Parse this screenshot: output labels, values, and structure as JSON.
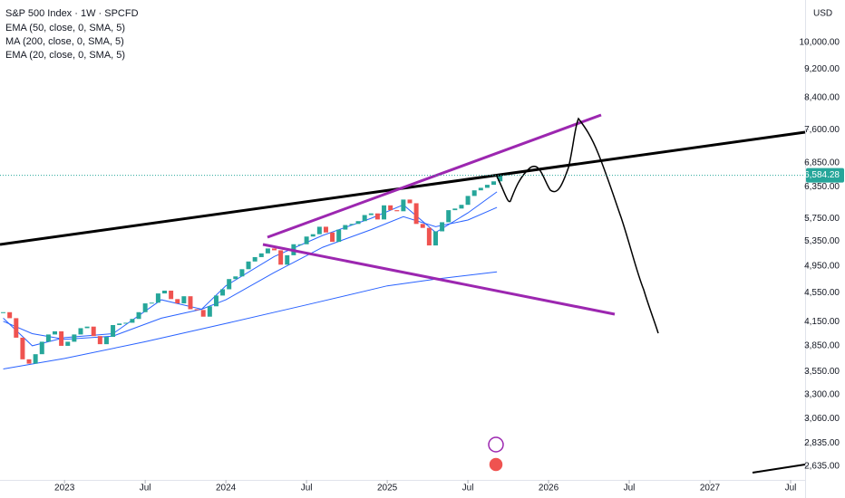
{
  "chart_data": {
    "type": "candlestick",
    "title": "S&P 500 Index · 1W · SPCFD",
    "indicators_legend": [
      "EMA (50, close, 0, SMA, 5)",
      "MA (200, close, 0, SMA, 5)",
      "EMA (20, close, 0, SMA, 5)"
    ],
    "currency": "USD",
    "log_scale": true,
    "grid": false,
    "up_color": "#26a69a",
    "down_color": "#ef5350",
    "x": [
      2022.62,
      2022.66,
      2022.7,
      2022.74,
      2022.78,
      2022.82,
      2022.86,
      2022.9,
      2022.94,
      2022.98,
      2023.02,
      2023.06,
      2023.1,
      2023.14,
      2023.18,
      2023.22,
      2023.26,
      2023.3,
      2023.34,
      2023.38,
      2023.42,
      2023.46,
      2023.5,
      2023.54,
      2023.58,
      2023.62,
      2023.66,
      2023.7,
      2023.74,
      2023.78,
      2023.82,
      2023.86,
      2023.9,
      2023.94,
      2023.98,
      2024.02,
      2024.06,
      2024.1,
      2024.14,
      2024.18,
      2024.22,
      2024.26,
      2024.3,
      2024.34,
      2024.38,
      2024.42,
      2024.46,
      2024.5,
      2024.54,
      2024.58,
      2024.62,
      2024.66,
      2024.7,
      2024.74,
      2024.78,
      2024.82,
      2024.86,
      2024.9,
      2024.94,
      2024.98,
      2025.02,
      2025.06,
      2025.1,
      2025.14,
      2025.18,
      2025.22,
      2025.26,
      2025.3,
      2025.34,
      2025.38,
      2025.42,
      2025.46,
      2025.5,
      2025.54,
      2025.58,
      2025.62,
      2025.66,
      2025.7
    ],
    "values": [
      4280,
      4200,
      3950,
      3690,
      3640,
      3750,
      3900,
      3990,
      4030,
      3850,
      3900,
      3990,
      4070,
      4090,
      3970,
      3870,
      3960,
      4110,
      4130,
      4140,
      4190,
      4280,
      4400,
      4410,
      4540,
      4580,
      4460,
      4400,
      4500,
      4320,
      4310,
      4220,
      4360,
      4510,
      4600,
      4750,
      4790,
      4900,
      5020,
      5090,
      5150,
      5230,
      5200,
      4970,
      5120,
      5300,
      5300,
      5430,
      5470,
      5600,
      5500,
      5340,
      5550,
      5630,
      5650,
      5700,
      5810,
      5840,
      5730,
      5990,
      5900,
      5880,
      6100,
      6030,
      5650,
      5580,
      5280,
      5520,
      5680,
      5900,
      5930,
      6000,
      6170,
      6280,
      6330,
      6390,
      6460,
      6584
    ],
    "series": [
      {
        "name": "EMA (50, close, 0, SMA, 5)",
        "color": "#2962ff",
        "x": [
          2022.62,
          2022.8,
          2023.0,
          2023.3,
          2023.6,
          2023.85,
          2024.0,
          2024.3,
          2024.6,
          2024.9,
          2025.1,
          2025.3,
          2025.5,
          2025.68
        ],
        "values": [
          4160,
          4000,
          3930,
          3970,
          4200,
          4320,
          4450,
          4850,
          5250,
          5550,
          5780,
          5600,
          5720,
          5950
        ]
      },
      {
        "name": "MA (200, close, 0, SMA, 5)",
        "color": "#2962ff",
        "x": [
          2022.62,
          2023.0,
          2023.5,
          2024.0,
          2024.5,
          2025.0,
          2025.3,
          2025.68
        ],
        "values": [
          3580,
          3700,
          3900,
          4130,
          4380,
          4650,
          4750,
          4860
        ]
      },
      {
        "name": "EMA (20, close, 0, SMA, 5)",
        "color": "#2962ff",
        "x": [
          2022.62,
          2022.8,
          2023.0,
          2023.3,
          2023.6,
          2023.85,
          2024.0,
          2024.3,
          2024.6,
          2024.9,
          2025.1,
          2025.3,
          2025.5,
          2025.68
        ],
        "values": [
          4200,
          3850,
          3950,
          4000,
          4450,
          4320,
          4650,
          5100,
          5450,
          5750,
          6000,
          5500,
          5850,
          6250
        ]
      }
    ],
    "last_price": {
      "value": 6584.28,
      "label": "6,584.28"
    },
    "xlim": [
      2022.6,
      2027.59
    ],
    "xticks": [
      {
        "value": 2023,
        "label": "2023"
      },
      {
        "value": 2023.5,
        "label": "Jul"
      },
      {
        "value": 2024,
        "label": "2024"
      },
      {
        "value": 2024.5,
        "label": "Jul"
      },
      {
        "value": 2025,
        "label": "2025"
      },
      {
        "value": 2025.5,
        "label": "Jul"
      },
      {
        "value": 2026,
        "label": "2026"
      },
      {
        "value": 2026.5,
        "label": "Jul"
      },
      {
        "value": 2027,
        "label": "2027"
      },
      {
        "value": 2027.5,
        "label": "Jul"
      }
    ],
    "ylim": [
      2525,
      11430
    ],
    "yticks": [
      {
        "value": 10000,
        "label": "10,000.00"
      },
      {
        "value": 9200,
        "label": "9,200.00"
      },
      {
        "value": 8400,
        "label": "8,400.00"
      },
      {
        "value": 7600,
        "label": "7,600.00"
      },
      {
        "value": 6850,
        "label": "6,850.00"
      },
      {
        "value": 6350,
        "label": "6,350.00"
      },
      {
        "value": 5750,
        "label": "5,750.00"
      },
      {
        "value": 5350,
        "label": "5,350.00"
      },
      {
        "value": 4950,
        "label": "4,950.00"
      },
      {
        "value": 4550,
        "label": "4,550.00"
      },
      {
        "value": 4150,
        "label": "4,150.00"
      },
      {
        "value": 3850,
        "label": "3,850.00"
      },
      {
        "value": 3550,
        "label": "3,550.00"
      },
      {
        "value": 3300,
        "label": "3,300.00"
      },
      {
        "value": 3060,
        "label": "3,060.00"
      },
      {
        "value": 2835,
        "label": "2,835.00"
      },
      {
        "value": 2635,
        "label": "2,635.00"
      }
    ]
  }
}
